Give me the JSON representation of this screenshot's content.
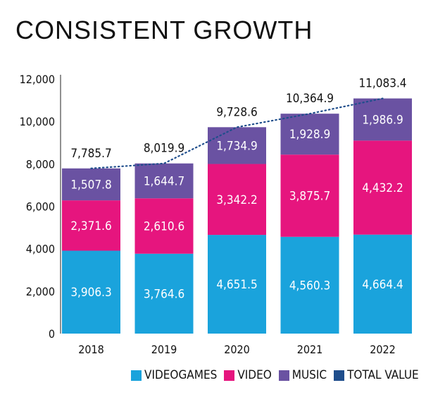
{
  "chart_data": {
    "type": "bar",
    "stacked": true,
    "title": "CONSISTENT GROWTH",
    "categories": [
      "2018",
      "2019",
      "2020",
      "2021",
      "2022"
    ],
    "ylim": [
      0,
      12000
    ],
    "yticks": [
      "0",
      "2,000",
      "4,000",
      "6,000",
      "8,000",
      "10,000",
      "12,000"
    ],
    "ytick_values": [
      0,
      2000,
      4000,
      6000,
      8000,
      10000,
      12000
    ],
    "grid": false,
    "legend_position": "bottom",
    "series": [
      {
        "name": "VIDEOGAMES",
        "color": "#1aa3dc",
        "values": [
          3906.3,
          3764.6,
          4651.5,
          4560.3,
          4664.4
        ],
        "labels": [
          "3,906.3",
          "3,764.6",
          "4,651.5",
          "4,560.3",
          "4,664.4"
        ]
      },
      {
        "name": "VIDEO",
        "color": "#e6157e",
        "values": [
          2371.6,
          2610.6,
          3342.2,
          3875.7,
          4432.2
        ],
        "labels": [
          "2,371.6",
          "2,610.6",
          "3,342.2",
          "3,875.7",
          "4,432.2"
        ]
      },
      {
        "name": "MUSIC",
        "color": "#6a52a2",
        "values": [
          1507.8,
          1644.7,
          1734.9,
          1928.9,
          1986.9
        ],
        "labels": [
          "1,507.8",
          "1,644.7",
          "1,734.9",
          "1,928.9",
          "1,986.9"
        ]
      }
    ],
    "total": {
      "name": "TOTAL VALUE",
      "color": "#1f4e8c",
      "style": "dotted-line",
      "values": [
        7785.7,
        8019.9,
        9728.6,
        10364.9,
        11083.4
      ],
      "labels": [
        "7,785.7",
        "8,019.9",
        "9,728.6",
        "10,364.9",
        "11,083.4"
      ]
    }
  }
}
